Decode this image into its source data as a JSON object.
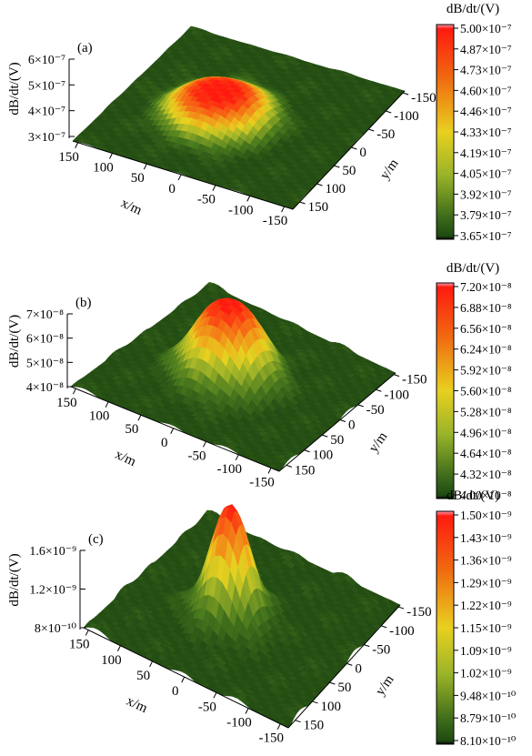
{
  "chart_data": [
    {
      "type": "surface3d",
      "panel_label": "(a)",
      "zlabel": "dB/dt/(V)",
      "xlabel": "x/m",
      "ylabel": "y/m",
      "x_ticks": [
        "150",
        "100",
        "50",
        "0",
        "-50",
        "-100",
        "-150"
      ],
      "y_ticks": [
        "-150",
        "-100",
        "-50",
        "0",
        "50",
        "100",
        "150"
      ],
      "z_ticks": [
        "3×10⁻⁷",
        "4×10⁻⁷",
        "5×10⁻⁷",
        "6×10⁻⁷"
      ],
      "colorbar": {
        "title": "dB/dt/(V)",
        "ticks": [
          "5.00×10⁻⁷",
          "4.87×10⁻⁷",
          "4.73×10⁻⁷",
          "4.60×10⁻⁷",
          "4.46×10⁻⁷",
          "4.33×10⁻⁷",
          "4.19×10⁻⁷",
          "4.05×10⁻⁷",
          "3.92×10⁻⁷",
          "3.79×10⁻⁷",
          "3.65×10⁻⁷"
        ]
      },
      "peak": {
        "x": 0,
        "y": 0,
        "value": 5e-07
      },
      "background_value": 3.65e-07
    },
    {
      "type": "surface3d",
      "panel_label": "(b)",
      "zlabel": "dB/dt/(V)",
      "xlabel": "x/m",
      "ylabel": "y/m",
      "x_ticks": [
        "150",
        "100",
        "50",
        "0",
        "-50",
        "-100",
        "-150"
      ],
      "y_ticks": [
        "-150",
        "-100",
        "-50",
        "0",
        "50",
        "100",
        "150"
      ],
      "z_ticks": [
        "4×10⁻⁸",
        "5×10⁻⁸",
        "6×10⁻⁸",
        "7×10⁻⁸"
      ],
      "colorbar": {
        "title": "dB/dt/(V)",
        "ticks": [
          "7.20×10⁻⁸",
          "6.88×10⁻⁸",
          "6.56×10⁻⁸",
          "6.24×10⁻⁸",
          "5.92×10⁻⁸",
          "5.60×10⁻⁸",
          "5.28×10⁻⁸",
          "4.96×10⁻⁸",
          "4.64×10⁻⁸",
          "4.32×10⁻⁸",
          "4.00×10⁻⁸"
        ]
      },
      "peak": {
        "x": 0,
        "y": 0,
        "value": 7.2e-08
      },
      "background_value": 4e-08
    },
    {
      "type": "surface3d",
      "panel_label": "(c)",
      "zlabel": "dB/dt/(V)",
      "xlabel": "x/m",
      "ylabel": "y/m",
      "x_ticks": [
        "150",
        "100",
        "50",
        "0",
        "-50",
        "-100",
        "-150"
      ],
      "y_ticks": [
        "-150",
        "-100",
        "-50",
        "0",
        "50",
        "100",
        "150"
      ],
      "z_ticks": [
        "8×10⁻¹⁰",
        "1.2×10⁻⁹",
        "1.6×10⁻⁹"
      ],
      "colorbar": {
        "title": "dB/dt/(V)",
        "ticks": [
          "1.50×10⁻⁹",
          "1.43×10⁻⁹",
          "1.36×10⁻⁹",
          "1.29×10⁻⁹",
          "1.22×10⁻⁹",
          "1.15×10⁻⁹",
          "1.09×10⁻⁹",
          "1.02×10⁻⁹",
          "9.48×10⁻¹⁰",
          "8.79×10⁻¹⁰",
          "8.10×10⁻¹⁰"
        ]
      },
      "peak": {
        "x": 0,
        "y": 0,
        "value": 1.5e-09
      },
      "background_value": 8.1e-10
    }
  ],
  "colors": {
    "low": "#1f4a12",
    "mid": "#e8d020",
    "high": "#ff1a10",
    "top": "#ff90a0",
    "bottom": "#050505"
  }
}
